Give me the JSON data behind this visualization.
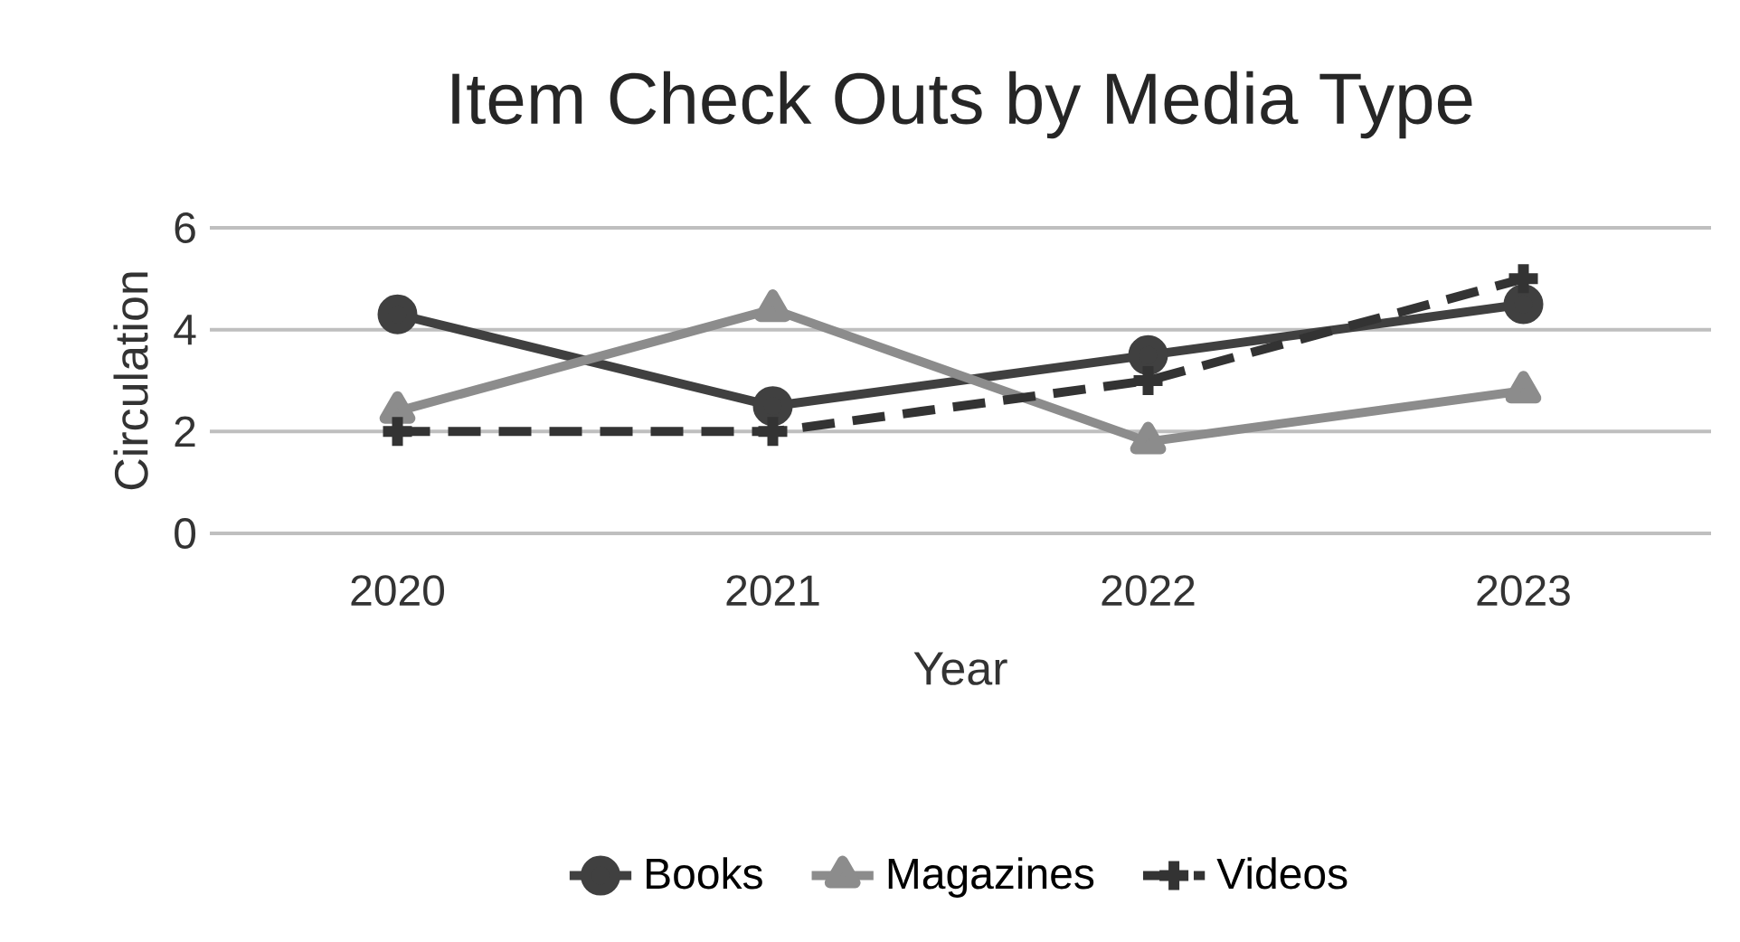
{
  "chart_data": {
    "type": "line",
    "title": "Item Check Outs by Media Type",
    "xlabel": "Year",
    "ylabel": "Circulation",
    "categories": [
      "2020",
      "2021",
      "2022",
      "2023"
    ],
    "series": [
      {
        "name": "Books",
        "color": "#404040",
        "values": [
          4.3,
          2.5,
          3.5,
          4.5
        ],
        "marker": "circle",
        "line_style": "solid"
      },
      {
        "name": "Magazines",
        "color": "#8c8c8c",
        "values": [
          2.4,
          4.4,
          1.8,
          2.8
        ],
        "marker": "triangle",
        "line_style": "solid"
      },
      {
        "name": "Videos",
        "color": "#333333",
        "values": [
          2.0,
          2.0,
          3.0,
          5.0
        ],
        "marker": "cross",
        "line_style": "dashed"
      }
    ],
    "ylim": [
      0,
      6
    ],
    "yticks": [
      0,
      2,
      4,
      6
    ],
    "grid": "y",
    "legend": "bottom"
  }
}
